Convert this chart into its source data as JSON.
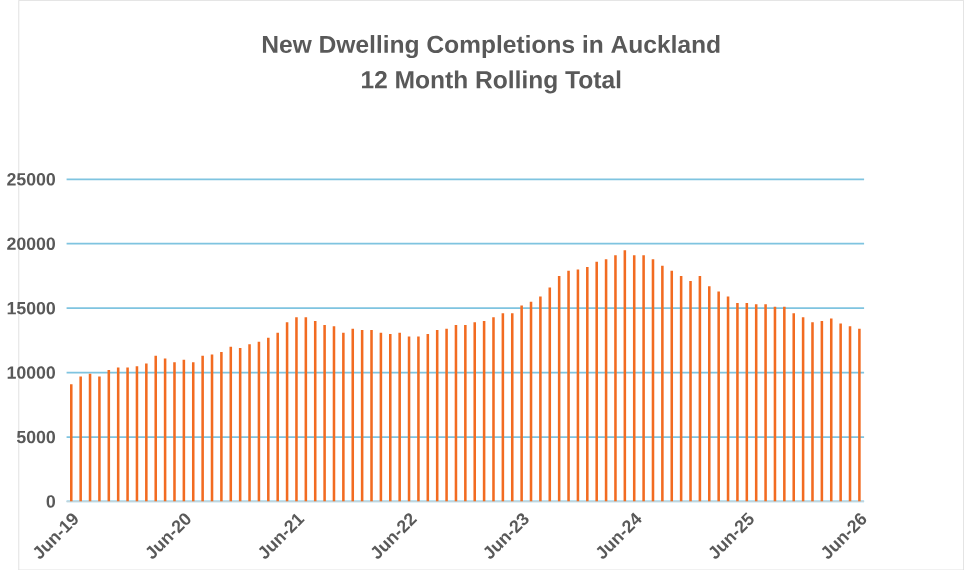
{
  "chart_data": {
    "type": "bar",
    "title": "New Dwelling Completions in Auckland",
    "subtitle": "12 Month Rolling Total",
    "categories": [
      "Jun-19",
      null,
      null,
      null,
      null,
      null,
      null,
      null,
      null,
      null,
      null,
      null,
      "Jun-20",
      null,
      null,
      null,
      null,
      null,
      null,
      null,
      null,
      null,
      null,
      null,
      "Jun-21",
      null,
      null,
      null,
      null,
      null,
      null,
      null,
      null,
      null,
      null,
      null,
      "Jun-22",
      null,
      null,
      null,
      null,
      null,
      null,
      null,
      null,
      null,
      null,
      null,
      "Jun-23",
      null,
      null,
      null,
      null,
      null,
      null,
      null,
      null,
      null,
      null,
      null,
      "Jun-24",
      null,
      null,
      null,
      null,
      null,
      null,
      null,
      null,
      null,
      null,
      null,
      "Jun-25",
      null,
      null,
      null,
      null,
      null,
      null,
      null,
      null,
      null,
      null,
      null,
      "Jun-26"
    ],
    "values": [
      9100,
      9700,
      9900,
      9700,
      10200,
      10400,
      10400,
      10500,
      10700,
      11300,
      11100,
      10800,
      11000,
      10800,
      11300,
      11400,
      11600,
      12000,
      11900,
      12200,
      12400,
      12700,
      13100,
      13900,
      14300,
      14300,
      14000,
      13700,
      13600,
      13100,
      13400,
      13300,
      13300,
      13100,
      13000,
      13100,
      12800,
      12800,
      13000,
      13300,
      13400,
      13700,
      13700,
      13900,
      14000,
      14300,
      14600,
      14600,
      15200,
      15500,
      15900,
      16600,
      17500,
      17900,
      18000,
      18200,
      18600,
      18800,
      19100,
      19500,
      19100,
      19100,
      18800,
      18300,
      17900,
      17500,
      17100,
      17500,
      16700,
      16300,
      15900,
      15400,
      15400,
      15300,
      15300,
      15100,
      15100,
      14600,
      14300,
      13900,
      14000,
      14200,
      13800,
      13600,
      13400
    ],
    "color": "#f26b21",
    "ylim": [
      0,
      25000
    ],
    "yticks": [
      0,
      5000,
      10000,
      15000,
      20000,
      25000
    ],
    "grid": "y"
  }
}
